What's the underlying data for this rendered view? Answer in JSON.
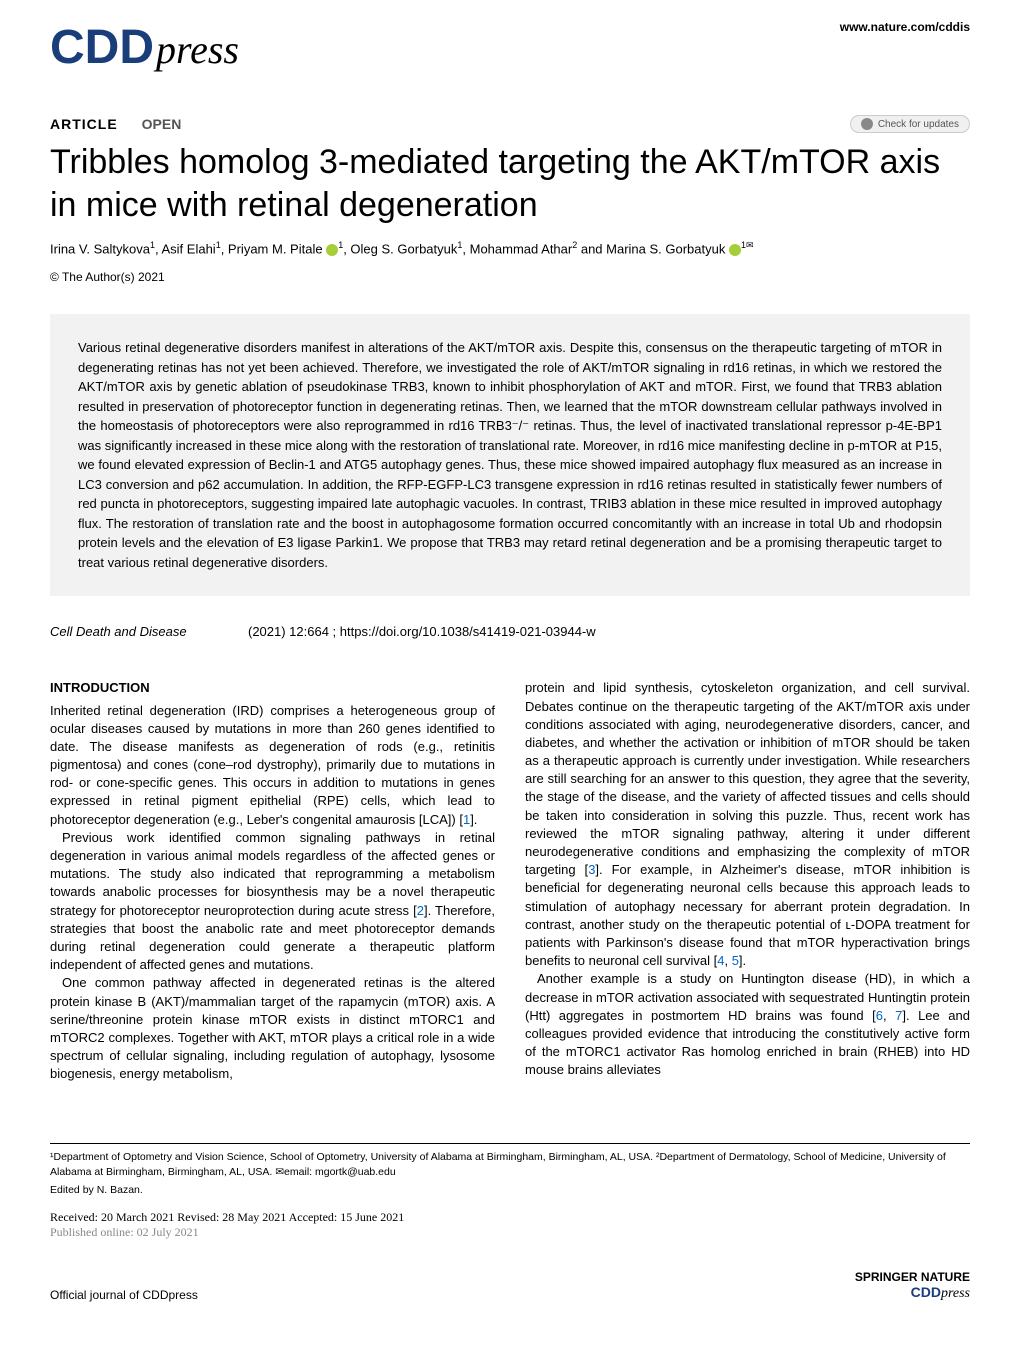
{
  "site": {
    "url": "www.nature.com/cddis",
    "logo_cdd": "CDD",
    "logo_press": "press"
  },
  "header": {
    "article_type": "ARTICLE",
    "open_access": "OPEN",
    "check_updates": "Check for updates"
  },
  "title": "Tribbles homolog 3-mediated targeting the AKT/mTOR axis in mice with retinal degeneration",
  "authors_html": "Irina V. Saltykova¹, Asif Elahi¹, Priyam M. Pitale ⓘ¹, Oleg S. Gorbatyuk¹, Mohammad Athar² and Marina S. Gorbatyuk ⓘ¹✉",
  "authors": {
    "a1": "Irina V. Saltykova",
    "a1_sup": "1",
    "a2": ", Asif Elahi",
    "a2_sup": "1",
    "a3": ", Priyam M. Pitale",
    "a3_sup": "1",
    "a4": ", Oleg S. Gorbatyuk",
    "a4_sup": "1",
    "a5": ", Mohammad Athar",
    "a5_sup": "2",
    "a6": " and Marina S. Gorbatyuk",
    "a6_sup": "1✉"
  },
  "copyright": "© The Author(s) 2021",
  "abstract": "Various retinal degenerative disorders manifest in alterations of the AKT/mTOR axis. Despite this, consensus on the therapeutic targeting of mTOR in degenerating retinas has not yet been achieved. Therefore, we investigated the role of AKT/mTOR signaling in rd16 retinas, in which we restored the AKT/mTOR axis by genetic ablation of pseudokinase TRB3, known to inhibit phosphorylation of AKT and mTOR. First, we found that TRB3 ablation resulted in preservation of photoreceptor function in degenerating retinas. Then, we learned that the mTOR downstream cellular pathways involved in the homeostasis of photoreceptors were also reprogrammed in rd16 TRB3⁻/⁻ retinas. Thus, the level of inactivated translational repressor p-4E-BP1 was significantly increased in these mice along with the restoration of translational rate. Moreover, in rd16 mice manifesting decline in p-mTOR at P15, we found elevated expression of Beclin-1 and ATG5 autophagy genes. Thus, these mice showed impaired autophagy flux measured as an increase in LC3 conversion and p62 accumulation. In addition, the RFP-EGFP-LC3 transgene expression in rd16 retinas resulted in statistically fewer numbers of red puncta in photoreceptors, suggesting impaired late autophagic vacuoles. In contrast, TRIB3 ablation in these mice resulted in improved autophagy flux. The restoration of translation rate and the boost in autophagosome formation occurred concomitantly with an increase in total Ub and rhodopsin protein levels and the elevation of E3 ligase Parkin1. We propose that TRB3 may retard retinal degeneration and be a promising therapeutic target to treat various retinal degenerative disorders.",
  "citation": {
    "journal": "Cell Death and Disease",
    "year_vol": "(2021)  12:664  ;",
    "doi": "https://doi.org/10.1038/s41419-021-03944-w"
  },
  "introduction": {
    "heading": "INTRODUCTION",
    "left_p1": "Inherited retinal degeneration (IRD) comprises a heterogeneous group of ocular diseases caused by mutations in more than 260 genes identified to date. The disease manifests as degeneration of rods (e.g., retinitis pigmentosa) and cones (cone–rod dystrophy), primarily due to mutations in rod- or cone-specific genes. This occurs in addition to mutations in genes expressed in retinal pigment epithelial (RPE) cells, which lead to photoreceptor degeneration (e.g., Leber's congenital amaurosis [LCA]) [",
    "left_p1_ref": "1",
    "left_p1_end": "].",
    "left_p2": "Previous work identified common signaling pathways in retinal degeneration in various animal models regardless of the affected genes or mutations. The study also indicated that reprogramming a metabolism towards anabolic processes for biosynthesis may be a novel therapeutic strategy for photoreceptor neuroprotection during acute stress [",
    "left_p2_ref": "2",
    "left_p2_end": "]. Therefore, strategies that boost the anabolic rate and meet photoreceptor demands during retinal degeneration could generate a therapeutic platform independent of affected genes and mutations.",
    "left_p3": "One common pathway affected in degenerated retinas is the altered protein kinase B (AKT)/mammalian target of the rapamycin (mTOR) axis. A serine/threonine protein kinase mTOR exists in distinct mTORC1 and mTORC2 complexes. Together with AKT, mTOR plays a critical role in a wide spectrum of cellular signaling, including regulation of autophagy, lysosome biogenesis, energy metabolism,",
    "right_p1": "protein and lipid synthesis, cytoskeleton organization, and cell survival. Debates continue on the therapeutic targeting of the AKT/mTOR axis under conditions associated with aging, neurodegenerative disorders, cancer, and diabetes, and whether the activation or inhibition of mTOR should be taken as a therapeutic approach is currently under investigation. While researchers are still searching for an answer to this question, they agree that the severity, the stage of the disease, and the variety of affected tissues and cells should be taken into consideration in solving this puzzle. Thus, recent work has reviewed the mTOR signaling pathway, altering it under different neurodegenerative conditions and emphasizing the complexity of mTOR targeting [",
    "right_p1_ref": "3",
    "right_p1_mid": "]. For example, in Alzheimer's disease, mTOR inhibition is beneficial for degenerating neuronal cells because this approach leads to stimulation of autophagy necessary for aberrant protein degradation. In contrast, another study on the therapeutic potential of ʟ-DOPA treatment for patients with Parkinson's disease found that mTOR hyperactivation brings benefits to neuronal cell survival [",
    "right_p1_ref2": "4",
    "right_p1_sep": ", ",
    "right_p1_ref3": "5",
    "right_p1_end": "].",
    "right_p2": "Another example is a study on Huntington disease (HD), in which a decrease in mTOR activation associated with sequestrated Huntingtin protein (Htt) aggregates in postmortem HD brains was found [",
    "right_p2_ref1": "6",
    "right_p2_sep": ", ",
    "right_p2_ref2": "7",
    "right_p2_end": "]. Lee and colleagues provided evidence that introducing the constitutively active form of the mTORC1 activator Ras homolog enriched in brain (RHEB) into HD mouse brains alleviates"
  },
  "affiliations": "¹Department of Optometry and Vision Science, School of Optometry, University of Alabama at Birmingham, Birmingham, AL, USA. ²Department of Dermatology, School of Medicine, University of Alabama at Birmingham, Birmingham, AL, USA. ✉email: mgortk@uab.edu",
  "edited_by": "Edited by N. Bazan.",
  "dates": {
    "line1": "Received: 20 March 2021 Revised: 28 May 2021 Accepted: 15 June 2021",
    "line2": "Published online: 02 July 2021"
  },
  "footer": {
    "left": "Official journal of CDDpress",
    "springer": "SPRINGER NATURE",
    "cdd": "CDD",
    "press": "press"
  },
  "colors": {
    "logo_blue": "#1a3e7a",
    "abstract_bg": "#f2f2f2",
    "link": "#0066cc",
    "orcid": "#a6ce39",
    "published_gray": "#888888"
  }
}
